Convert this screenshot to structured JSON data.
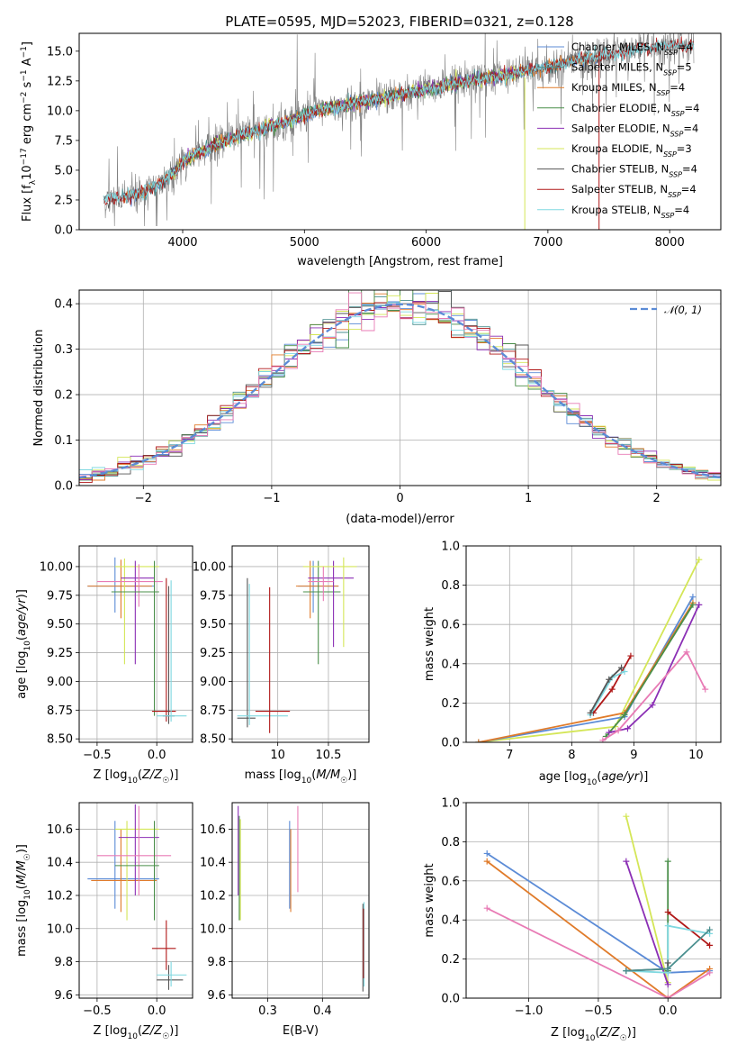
{
  "figure": {
    "title": "PLATE=0595, MJD=52023, FIBERID=0321, z=0.128",
    "colors": {
      "Chabrier MILES": "#5b8bd6",
      "Salpeter MILES": "#4a8f8f",
      "Kroupa MILES": "#e07b2a",
      "Chabrier ELODIE": "#4a8f4a",
      "Salpeter ELODIE": "#8b2fb5",
      "Kroupa ELODIE": "#d4e657",
      "Chabrier STELIB": "#555555",
      "Salpeter STELIB": "#b01818",
      "Kroupa STELIB": "#7fd8e0",
      "Extra": "#e87bb5",
      "Data": "#808080",
      "Gauss": "#5b8bd6"
    }
  },
  "chart_data": [
    {
      "id": "spectrum",
      "type": "line",
      "xlabel": "wavelength [Angstrom, rest frame]",
      "ylabel": "Flux [f_λ10^-17 erg cm^-2 s^-1 A^-1]",
      "xlim": [
        3150,
        8420
      ],
      "ylim": [
        0,
        16.5
      ],
      "xticks": [
        4000,
        5000,
        6000,
        7000,
        8000
      ],
      "yticks": [
        0,
        2.5,
        5.0,
        7.5,
        10.0,
        12.5,
        15.0
      ],
      "ytick_labels": [
        "0.0",
        "2.5",
        "5.0",
        "7.5",
        "10.0",
        "12.5",
        "15.0"
      ],
      "grid": false,
      "legend_position": "right",
      "continuum_anchor": {
        "x": [
          3350,
          3500,
          3650,
          3800,
          3950,
          4000,
          4100,
          4300,
          4500,
          4700,
          4900,
          5000,
          5200,
          5400,
          5600,
          5800,
          6000,
          6200,
          6400,
          6600,
          6800,
          7000,
          7200,
          7400,
          7600,
          7800,
          8000,
          8200
        ],
        "y": [
          2.5,
          2.7,
          3.0,
          3.8,
          5.0,
          5.7,
          6.3,
          7.3,
          8.0,
          8.6,
          9.2,
          9.7,
          10.2,
          10.6,
          11.0,
          11.4,
          11.8,
          12.2,
          12.6,
          12.9,
          13.3,
          13.7,
          14.2,
          14.5,
          14.9,
          15.2,
          15.5,
          15.4
        ]
      },
      "series": [
        {
          "name": "Chabrier MILES, N_SSP=4",
          "color_key": "Chabrier MILES",
          "x_range": [
            3500,
            7420
          ]
        },
        {
          "name": "Salpeter MILES, N_SSP=5",
          "color_key": "Salpeter MILES",
          "x_range": [
            3500,
            7420
          ]
        },
        {
          "name": "Kroupa MILES, N_SSP=4",
          "color_key": "Kroupa MILES",
          "x_range": [
            3500,
            7420
          ]
        },
        {
          "name": "Chabrier ELODIE, N_SSP=4",
          "color_key": "Chabrier ELODIE",
          "x_range": [
            3900,
            6800
          ]
        },
        {
          "name": "Salpeter ELODIE, N_SSP=4",
          "color_key": "Salpeter ELODIE",
          "x_range": [
            3900,
            6800
          ]
        },
        {
          "name": "Kroupa ELODIE, N_SSP=3",
          "color_key": "Kroupa ELODIE",
          "x_range": [
            3900,
            6800
          ]
        },
        {
          "name": "Chabrier STELIB, N_SSP=4",
          "color_key": "Chabrier STELIB",
          "x_range": [
            3350,
            8200
          ]
        },
        {
          "name": "Salpeter STELIB, N_SSP=4",
          "color_key": "Salpeter STELIB",
          "x_range": [
            3350,
            8200
          ]
        },
        {
          "name": "Kroupa STELIB, N_SSP=4",
          "color_key": "Kroupa STELIB",
          "x_range": [
            3350,
            8200
          ]
        }
      ]
    },
    {
      "id": "residuals",
      "type": "histogram",
      "xlabel": "(data-model)/error",
      "ylabel": "Normed distribution",
      "xlim": [
        -2.5,
        2.5
      ],
      "ylim": [
        0,
        0.43
      ],
      "xticks": [
        -2,
        -1,
        0,
        1,
        2
      ],
      "xtick_labels": [
        "−2",
        "−1",
        "0",
        "1",
        "2"
      ],
      "yticks": [
        0,
        0.1,
        0.2,
        0.3,
        0.4
      ],
      "ytick_labels": [
        "0.0",
        "0.1",
        "0.2",
        "0.3",
        "0.4"
      ],
      "grid": true,
      "legend": "𝒩(0, 1)",
      "legend_position": "top-right",
      "bin_width": 0.1,
      "series_color_keys": [
        "Chabrier MILES",
        "Salpeter MILES",
        "Kroupa MILES",
        "Chabrier ELODIE",
        "Salpeter ELODIE",
        "Kroupa ELODIE",
        "Chabrier STELIB",
        "Salpeter STELIB",
        "Kroupa STELIB",
        "Extra"
      ]
    },
    {
      "id": "z-age",
      "type": "errorbar",
      "xlabel": "Z [log10(Z/Z☉)]",
      "ylabel": "age [log10(age/yr)]",
      "xlim": [
        -0.65,
        0.3
      ],
      "ylim": [
        8.47,
        10.18
      ],
      "xticks": [
        -0.5,
        0.0
      ],
      "xtick_labels": [
        "−0.5",
        "0.0"
      ],
      "yticks": [
        8.5,
        8.75,
        9.0,
        9.25,
        9.5,
        9.75,
        10.0
      ],
      "ytick_labels": [
        "8.50",
        "8.75",
        "9.00",
        "9.25",
        "9.50",
        "9.75",
        "10.00"
      ],
      "grid": true,
      "points": [
        {
          "c": "Chabrier MILES",
          "x": -0.35,
          "xl": -0.58,
          "xh": -0.02,
          "y": 9.83,
          "yl": 9.6,
          "yh": 10.08
        },
        {
          "c": "Kroupa MILES",
          "x": -0.3,
          "xl": -0.58,
          "xh": -0.04,
          "y": 9.83,
          "yl": 9.55,
          "yh": 10.06
        },
        {
          "c": "Kroupa ELODIE",
          "x": -0.27,
          "xl": -0.35,
          "xh": 0.02,
          "y": 10.0,
          "yl": 9.15,
          "yh": 10.07
        },
        {
          "c": "Salpeter ELODIE",
          "x": -0.18,
          "xl": -0.3,
          "xh": -0.02,
          "y": 9.9,
          "yl": 9.15,
          "yh": 10.05
        },
        {
          "c": "Extra",
          "x": -0.15,
          "xl": -0.5,
          "xh": 0.05,
          "y": 9.87,
          "yl": 9.65,
          "yh": 10.02
        },
        {
          "c": "Chabrier ELODIE",
          "x": -0.02,
          "xl": -0.38,
          "xh": 0.02,
          "y": 9.78,
          "yl": 8.7,
          "yh": 10.05
        },
        {
          "c": "Salpeter STELIB",
          "x": 0.08,
          "xl": -0.04,
          "xh": 0.16,
          "y": 8.74,
          "yl": 8.65,
          "yh": 9.9
        },
        {
          "c": "Chabrier STELIB",
          "x": 0.1,
          "xl": 0.05,
          "xh": 0.15,
          "y": 8.7,
          "yl": 8.63,
          "yh": 9.83
        },
        {
          "c": "Kroupa STELIB",
          "x": 0.12,
          "xl": 0.0,
          "xh": 0.25,
          "y": 8.7,
          "yl": 8.65,
          "yh": 9.88
        }
      ]
    },
    {
      "id": "mass-age",
      "type": "errorbar",
      "xlabel": "mass [log10(M/M☉)]",
      "ylabel": "",
      "xlim": [
        9.55,
        10.9
      ],
      "ylim": [
        8.47,
        10.18
      ],
      "xticks": [
        10.0,
        10.5
      ],
      "xtick_labels": [
        "10",
        "10.5"
      ],
      "yticks": [
        8.5,
        8.75,
        9.0,
        9.25,
        9.5,
        9.75,
        10.0
      ],
      "ytick_labels": [
        "8.50",
        "8.75",
        "9.00",
        "9.25",
        "9.50",
        "9.75",
        "10.00"
      ],
      "grid": true,
      "points": [
        {
          "c": "Chabrier STELIB",
          "x": 9.7,
          "xl": 9.6,
          "xh": 9.78,
          "y": 8.68,
          "yl": 8.6,
          "yh": 9.9
        },
        {
          "c": "Kroupa STELIB",
          "x": 9.72,
          "xl": 9.6,
          "xh": 10.1,
          "y": 8.7,
          "yl": 8.62,
          "yh": 9.85
        },
        {
          "c": "Salpeter STELIB",
          "x": 9.92,
          "xl": 9.78,
          "xh": 10.12,
          "y": 8.74,
          "yl": 8.55,
          "yh": 9.82
        },
        {
          "c": "Chabrier MILES",
          "x": 10.35,
          "xl": 10.2,
          "xh": 10.6,
          "y": 9.83,
          "yl": 9.6,
          "yh": 10.05
        },
        {
          "c": "Kroupa MILES",
          "x": 10.32,
          "xl": 10.18,
          "xh": 10.6,
          "y": 9.83,
          "yl": 9.55,
          "yh": 10.05
        },
        {
          "c": "Chabrier ELODIE",
          "x": 10.4,
          "xl": 10.25,
          "xh": 10.62,
          "y": 9.78,
          "yl": 9.15,
          "yh": 10.05
        },
        {
          "c": "Salpeter ELODIE",
          "x": 10.55,
          "xl": 10.3,
          "xh": 10.75,
          "y": 9.9,
          "yl": 9.3,
          "yh": 10.05
        },
        {
          "c": "Kroupa ELODIE",
          "x": 10.65,
          "xl": 10.25,
          "xh": 10.78,
          "y": 10.0,
          "yl": 9.3,
          "yh": 10.08
        },
        {
          "c": "Extra",
          "x": 10.45,
          "xl": 10.3,
          "xh": 10.55,
          "y": 9.87,
          "yl": 9.7,
          "yh": 10.0
        }
      ]
    },
    {
      "id": "age-weight",
      "type": "line",
      "xlabel": "age [log10(age/yr)]",
      "ylabel": "mass weight",
      "xlim": [
        6.3,
        10.4
      ],
      "ylim": [
        0,
        1.0
      ],
      "xticks": [
        7,
        8,
        9,
        10
      ],
      "yticks": [
        0,
        0.2,
        0.4,
        0.6,
        0.8,
        1.0
      ],
      "ytick_labels": [
        "0.0",
        "0.2",
        "0.4",
        "0.6",
        "0.8",
        "1.0"
      ],
      "grid": true,
      "series": [
        {
          "c": "Kroupa ELODIE",
          "x": [
            6.5,
            8.7,
            10.05
          ],
          "y": [
            0.0,
            0.08,
            0.93
          ]
        },
        {
          "c": "Chabrier MILES",
          "x": [
            6.5,
            8.85,
            9.95
          ],
          "y": [
            0.0,
            0.13,
            0.74
          ]
        },
        {
          "c": "Kroupa MILES",
          "x": [
            6.5,
            8.85,
            9.95
          ],
          "y": [
            0.0,
            0.15,
            0.71
          ]
        },
        {
          "c": "Chabrier ELODIE",
          "x": [
            8.55,
            8.85,
            9.95
          ],
          "y": [
            0.03,
            0.14,
            0.7
          ]
        },
        {
          "c": "Salpeter ELODIE",
          "x": [
            8.6,
            8.9,
            9.3,
            10.05
          ],
          "y": [
            0.05,
            0.07,
            0.19,
            0.7
          ]
        },
        {
          "c": "Extra",
          "x": [
            8.5,
            8.75,
            9.85,
            10.15
          ],
          "y": [
            0.01,
            0.06,
            0.46,
            0.27
          ]
        },
        {
          "c": "Salpeter STELIB",
          "x": [
            8.35,
            8.65,
            8.95
          ],
          "y": [
            0.15,
            0.27,
            0.44
          ]
        },
        {
          "c": "Kroupa STELIB",
          "x": [
            8.3,
            8.65,
            8.85
          ],
          "y": [
            0.14,
            0.33,
            0.36
          ]
        },
        {
          "c": "Chabrier STELIB",
          "x": [
            8.3,
            8.6,
            8.8
          ],
          "y": [
            0.15,
            0.32,
            0.38
          ]
        }
      ]
    },
    {
      "id": "z-mass",
      "type": "errorbar",
      "xlabel": "Z [log10(Z/Z☉)]",
      "ylabel": "mass [log10(M/M☉)]",
      "xlim": [
        -0.65,
        0.3
      ],
      "ylim": [
        9.58,
        10.76
      ],
      "xticks": [
        -0.5,
        0.0
      ],
      "xtick_labels": [
        "−0.5",
        "0.0"
      ],
      "yticks": [
        9.6,
        9.8,
        10.0,
        10.2,
        10.4,
        10.6
      ],
      "ytick_labels": [
        "9.6",
        "9.8",
        "10.0",
        "10.2",
        "10.4",
        "10.6"
      ],
      "grid": true,
      "points": [
        {
          "c": "Chabrier MILES",
          "x": -0.35,
          "xl": -0.58,
          "xh": 0.02,
          "y": 10.3,
          "yl": 10.12,
          "yh": 10.65
        },
        {
          "c": "Kroupa MILES",
          "x": -0.3,
          "xl": -0.55,
          "xh": -0.0,
          "y": 10.29,
          "yl": 10.1,
          "yh": 10.6
        },
        {
          "c": "Kroupa ELODIE",
          "x": -0.25,
          "xl": -0.35,
          "xh": 0.02,
          "y": 10.6,
          "yl": 10.05,
          "yh": 10.65
        },
        {
          "c": "Salpeter ELODIE",
          "x": -0.18,
          "xl": -0.32,
          "xh": 0.02,
          "y": 10.55,
          "yl": 10.2,
          "yh": 10.75
        },
        {
          "c": "Extra",
          "x": -0.15,
          "xl": -0.5,
          "xh": 0.12,
          "y": 10.44,
          "yl": 10.2,
          "yh": 10.74
        },
        {
          "c": "Chabrier ELODIE",
          "x": -0.02,
          "xl": -0.35,
          "xh": 0.02,
          "y": 10.38,
          "yl": 10.05,
          "yh": 10.65
        },
        {
          "c": "Salpeter STELIB",
          "x": 0.08,
          "xl": -0.04,
          "xh": 0.16,
          "y": 9.88,
          "yl": 9.75,
          "yh": 10.05
        },
        {
          "c": "Chabrier STELIB",
          "x": 0.1,
          "xl": 0.0,
          "xh": 0.22,
          "y": 9.69,
          "yl": 9.63,
          "yh": 9.78
        },
        {
          "c": "Kroupa STELIB",
          "x": 0.12,
          "xl": 0.0,
          "xh": 0.25,
          "y": 9.72,
          "yl": 9.65,
          "yh": 9.8
        }
      ]
    },
    {
      "id": "ebv-mass",
      "type": "errorbar",
      "xlabel": "E(B-V)",
      "ylabel": "",
      "xlim": [
        0.235,
        0.485
      ],
      "ylim": [
        9.58,
        10.76
      ],
      "xticks": [
        0.3,
        0.4
      ],
      "xtick_labels": [
        "0.3",
        "0.4"
      ],
      "yticks": [
        9.6,
        9.8,
        10.0,
        10.2,
        10.4,
        10.6
      ],
      "ytick_labels": [
        "9.6",
        "9.8",
        "10.0",
        "10.2",
        "10.4",
        "10.6"
      ],
      "grid": true,
      "points": [
        {
          "c": "Chabrier ELODIE",
          "x": 0.248,
          "xl": 0.248,
          "xh": 0.248,
          "y": 10.38,
          "yl": 10.05,
          "yh": 10.68
        },
        {
          "c": "Kroupa ELODIE",
          "x": 0.25,
          "xl": 0.25,
          "xh": 0.25,
          "y": 10.6,
          "yl": 10.05,
          "yh": 10.66
        },
        {
          "c": "Salpeter ELODIE",
          "x": 0.246,
          "xl": 0.246,
          "xh": 0.246,
          "y": 10.55,
          "yl": 10.2,
          "yh": 10.74
        },
        {
          "c": "Chabrier MILES",
          "x": 0.34,
          "xl": 0.34,
          "xh": 0.34,
          "y": 10.3,
          "yl": 10.12,
          "yh": 10.65
        },
        {
          "c": "Kroupa MILES",
          "x": 0.342,
          "xl": 0.342,
          "xh": 0.342,
          "y": 10.29,
          "yl": 10.1,
          "yh": 10.6
        },
        {
          "c": "Extra",
          "x": 0.355,
          "xl": 0.355,
          "xh": 0.355,
          "y": 10.44,
          "yl": 10.22,
          "yh": 10.74
        },
        {
          "c": "Chabrier STELIB",
          "x": 0.474,
          "xl": 0.474,
          "xh": 0.474,
          "y": 9.69,
          "yl": 9.62,
          "yh": 10.15
        },
        {
          "c": "Kroupa STELIB",
          "x": 0.476,
          "xl": 0.476,
          "xh": 0.476,
          "y": 9.72,
          "yl": 9.65,
          "yh": 10.16
        },
        {
          "c": "Salpeter STELIB",
          "x": 0.475,
          "xl": 0.475,
          "xh": 0.475,
          "y": 9.88,
          "yl": 9.7,
          "yh": 10.12
        }
      ]
    },
    {
      "id": "z-weight",
      "type": "line",
      "xlabel": "Z [log10(Z/Z☉)]",
      "ylabel": "mass weight",
      "xlim": [
        -1.45,
        0.38
      ],
      "ylim": [
        0,
        1.0
      ],
      "xticks": [
        -1.0,
        -0.5,
        0.0
      ],
      "xtick_labels": [
        "−1.0",
        "−0.5",
        "0.0"
      ],
      "yticks": [
        0,
        0.2,
        0.4,
        0.6,
        0.8,
        1.0
      ],
      "ytick_labels": [
        "0.0",
        "0.2",
        "0.4",
        "0.6",
        "0.8",
        "1.0"
      ],
      "grid": true,
      "series": [
        {
          "c": "Chabrier MILES",
          "x": [
            -1.3,
            0.0,
            0.3
          ],
          "y": [
            0.74,
            0.13,
            0.14
          ]
        },
        {
          "c": "Kroupa MILES",
          "x": [
            -1.3,
            0.0,
            0.3
          ],
          "y": [
            0.7,
            0.0,
            0.15
          ]
        },
        {
          "c": "Extra",
          "x": [
            -1.3,
            0.0,
            0.3
          ],
          "y": [
            0.46,
            0.0,
            0.13
          ]
        },
        {
          "c": "Kroupa ELODIE",
          "x": [
            -0.3,
            0.0
          ],
          "y": [
            0.93,
            0.08
          ]
        },
        {
          "c": "Salpeter ELODIE",
          "x": [
            -0.3,
            0.0
          ],
          "y": [
            0.7,
            0.07
          ]
        },
        {
          "c": "Chabrier ELODIE",
          "x": [
            0.0,
            0.0
          ],
          "y": [
            0.7,
            0.14
          ]
        },
        {
          "c": "Salpeter STELIB",
          "x": [
            0.0,
            0.3
          ],
          "y": [
            0.44,
            0.27
          ]
        },
        {
          "c": "Kroupa STELIB",
          "x": [
            -0.3,
            0.0,
            0.0,
            0.3
          ],
          "y": [
            0.14,
            0.13,
            0.37,
            0.33
          ]
        },
        {
          "c": "Chabrier STELIB",
          "x": [
            -0.3,
            0.0,
            0.0
          ],
          "y": [
            0.14,
            0.15,
            0.18
          ]
        },
        {
          "c": "Salpeter MILES",
          "x": [
            -0.3,
            0.0,
            0.3
          ],
          "y": [
            0.14,
            0.15,
            0.35
          ]
        }
      ]
    }
  ]
}
